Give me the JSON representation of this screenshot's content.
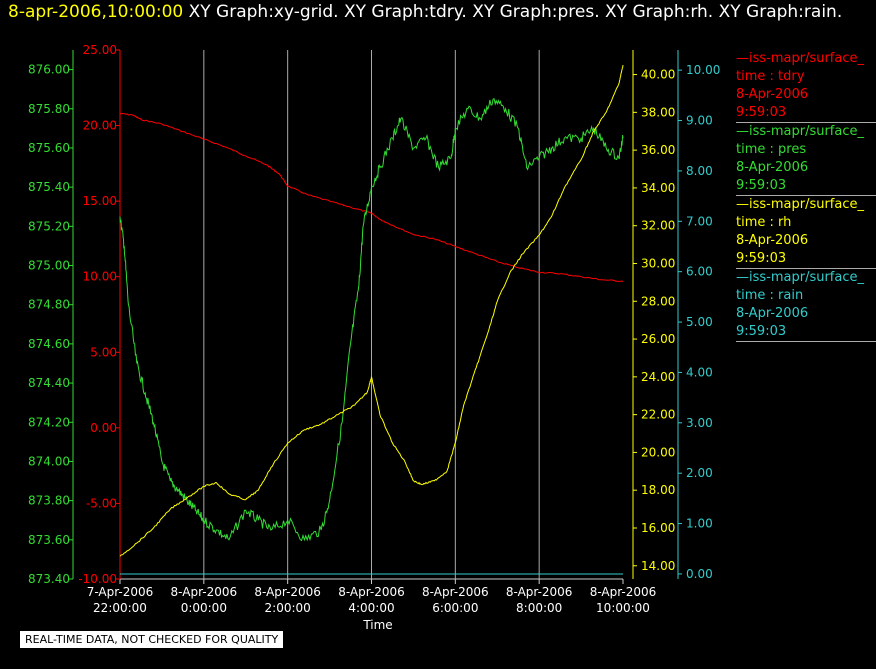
{
  "header": {
    "datetime": "8-apr-2006,10:00:00",
    "graphs": "XY Graph:xy-grid.  XY Graph:tdry.  XY Graph:pres.  XY Graph:rh.  XY Graph:rain."
  },
  "footnote": "REAL-TIME DATA, NOT CHECKED FOR QUALITY",
  "legend": [
    {
      "source": "—iss-mapr/surface_",
      "field": "time : tdry",
      "date": "8-Apr-2006",
      "time": "9:59:03",
      "color": "#ff0000"
    },
    {
      "source": "—iss-mapr/surface_",
      "field": "time : pres",
      "date": "8-Apr-2006",
      "time": "9:59:03",
      "color": "#33dd33"
    },
    {
      "source": "—iss-mapr/surface_",
      "field": "time : rh",
      "date": "8-Apr-2006",
      "time": "9:59:03",
      "color": "#ffff00"
    },
    {
      "source": "—iss-mapr/surface_",
      "field": "time : rain",
      "date": "8-Apr-2006",
      "time": "9:59:03",
      "color": "#33cccc"
    }
  ],
  "chart_data": {
    "type": "line",
    "xlabel": "Time",
    "x_range_hours": [
      -2,
      10
    ],
    "x_ticks": [
      {
        "date": "7-Apr-2006",
        "time": "22:00:00"
      },
      {
        "date": "8-Apr-2006",
        "time": "0:00:00"
      },
      {
        "date": "8-Apr-2006",
        "time": "2:00:00"
      },
      {
        "date": "8-Apr-2006",
        "time": "4:00:00"
      },
      {
        "date": "8-Apr-2006",
        "time": "6:00:00"
      },
      {
        "date": "8-Apr-2006",
        "time": "8:00:00"
      },
      {
        "date": "8-Apr-2006",
        "time": "10:00:00"
      }
    ],
    "grid": true,
    "axes": [
      {
        "name": "pres",
        "color": "#33dd33",
        "range": [
          873.4,
          876.1
        ],
        "ticks": [
          "873.40",
          "873.60",
          "873.80",
          "874.00",
          "874.20",
          "874.40",
          "874.60",
          "874.80",
          "875.00",
          "875.20",
          "875.40",
          "875.60",
          "875.80",
          "876.00"
        ]
      },
      {
        "name": "tdry",
        "color": "#ff0000",
        "range": [
          -10,
          25
        ],
        "ticks": [
          "-10.00",
          "-5.00",
          "0.00",
          "5.00",
          "10.00",
          "15.00",
          "20.00",
          "25.00"
        ]
      },
      {
        "name": "rh",
        "color": "#ffff00",
        "range": [
          13.3,
          41.3
        ],
        "ticks": [
          "14.00",
          "16.00",
          "18.00",
          "20.00",
          "22.00",
          "24.00",
          "26.00",
          "28.00",
          "30.00",
          "32.00",
          "34.00",
          "36.00",
          "38.00",
          "40.00"
        ]
      },
      {
        "name": "rain",
        "color": "#33cccc",
        "range": [
          -0.1,
          10.4
        ],
        "ticks": [
          "0.00",
          "1.00",
          "2.00",
          "3.00",
          "4.00",
          "5.00",
          "6.00",
          "7.00",
          "8.00",
          "9.00",
          "10.00"
        ]
      }
    ],
    "series": [
      {
        "name": "tdry",
        "color": "#ff0000",
        "axis": 1,
        "x": [
          -2,
          -1.7,
          -1.5,
          -1,
          -0.5,
          0,
          0.5,
          1,
          1.5,
          1.8,
          2,
          2.5,
          3,
          3.5,
          4,
          4.2,
          4.5,
          5,
          5.5,
          6,
          6.5,
          7,
          7.5,
          8,
          8.5,
          9,
          9.5,
          10
        ],
        "y": [
          20.8,
          20.7,
          20.4,
          20.1,
          19.6,
          19.1,
          18.6,
          18.0,
          17.4,
          16.8,
          16.0,
          15.4,
          15.0,
          14.6,
          14.2,
          13.8,
          13.4,
          12.8,
          12.5,
          12.0,
          11.5,
          11.0,
          10.6,
          10.3,
          10.2,
          10.0,
          9.8,
          9.7
        ]
      },
      {
        "name": "pres",
        "color": "#33dd33",
        "axis": 0,
        "x": [
          -2,
          -1.9,
          -1.8,
          -1.6,
          -1.4,
          -1.2,
          -1,
          -0.8,
          -0.6,
          -0.4,
          -0.2,
          0,
          0.3,
          0.6,
          1,
          1.3,
          1.6,
          2,
          2.4,
          2.8,
          3,
          3.3,
          3.5,
          3.7,
          3.8,
          4,
          4.2,
          4.5,
          4.7,
          5,
          5.3,
          5.6,
          5.9,
          6,
          6.3,
          6.6,
          6.9,
          7.2,
          7.5,
          7.7,
          8,
          8.3,
          8.6,
          9,
          9.3,
          9.6,
          9.9,
          10
        ],
        "y": [
          875.25,
          875.1,
          874.8,
          874.5,
          874.35,
          874.2,
          874.0,
          873.9,
          873.85,
          873.8,
          873.75,
          873.7,
          873.65,
          873.6,
          873.75,
          873.7,
          873.65,
          873.7,
          873.6,
          873.65,
          873.8,
          874.2,
          874.6,
          874.9,
          875.2,
          875.4,
          875.5,
          875.65,
          875.75,
          875.6,
          875.65,
          875.5,
          875.55,
          875.7,
          875.8,
          875.75,
          875.85,
          875.8,
          875.7,
          875.5,
          875.55,
          875.6,
          875.65,
          875.65,
          875.7,
          875.6,
          875.55,
          875.65
        ]
      },
      {
        "name": "rh",
        "color": "#ffff00",
        "axis": 2,
        "x": [
          -2,
          -1.6,
          -1.2,
          -0.8,
          -0.4,
          0,
          0.3,
          0.6,
          1,
          1.3,
          1.6,
          2,
          2.4,
          2.8,
          3.2,
          3.6,
          3.9,
          4,
          4.2,
          4.5,
          4.8,
          5,
          5.2,
          5.5,
          5.8,
          6,
          6.2,
          6.5,
          6.8,
          7,
          7.3,
          7.6,
          8,
          8.3,
          8.6,
          9,
          9.3,
          9.6,
          9.9,
          10
        ],
        "y": [
          14.5,
          15.2,
          16,
          17,
          17.6,
          18.2,
          18.4,
          17.8,
          17.5,
          18,
          19.2,
          20.5,
          21.2,
          21.5,
          22,
          22.5,
          23.2,
          24,
          22,
          20.5,
          19.5,
          18.5,
          18.3,
          18.5,
          19,
          20.5,
          22.5,
          24.5,
          26.5,
          28,
          29.5,
          30.5,
          31.5,
          32.5,
          34,
          35.5,
          37,
          38,
          39.5,
          40.5
        ]
      },
      {
        "name": "rain",
        "color": "#33cccc",
        "axis": 3,
        "x": [
          -2,
          10
        ],
        "y": [
          0,
          0
        ]
      }
    ]
  }
}
